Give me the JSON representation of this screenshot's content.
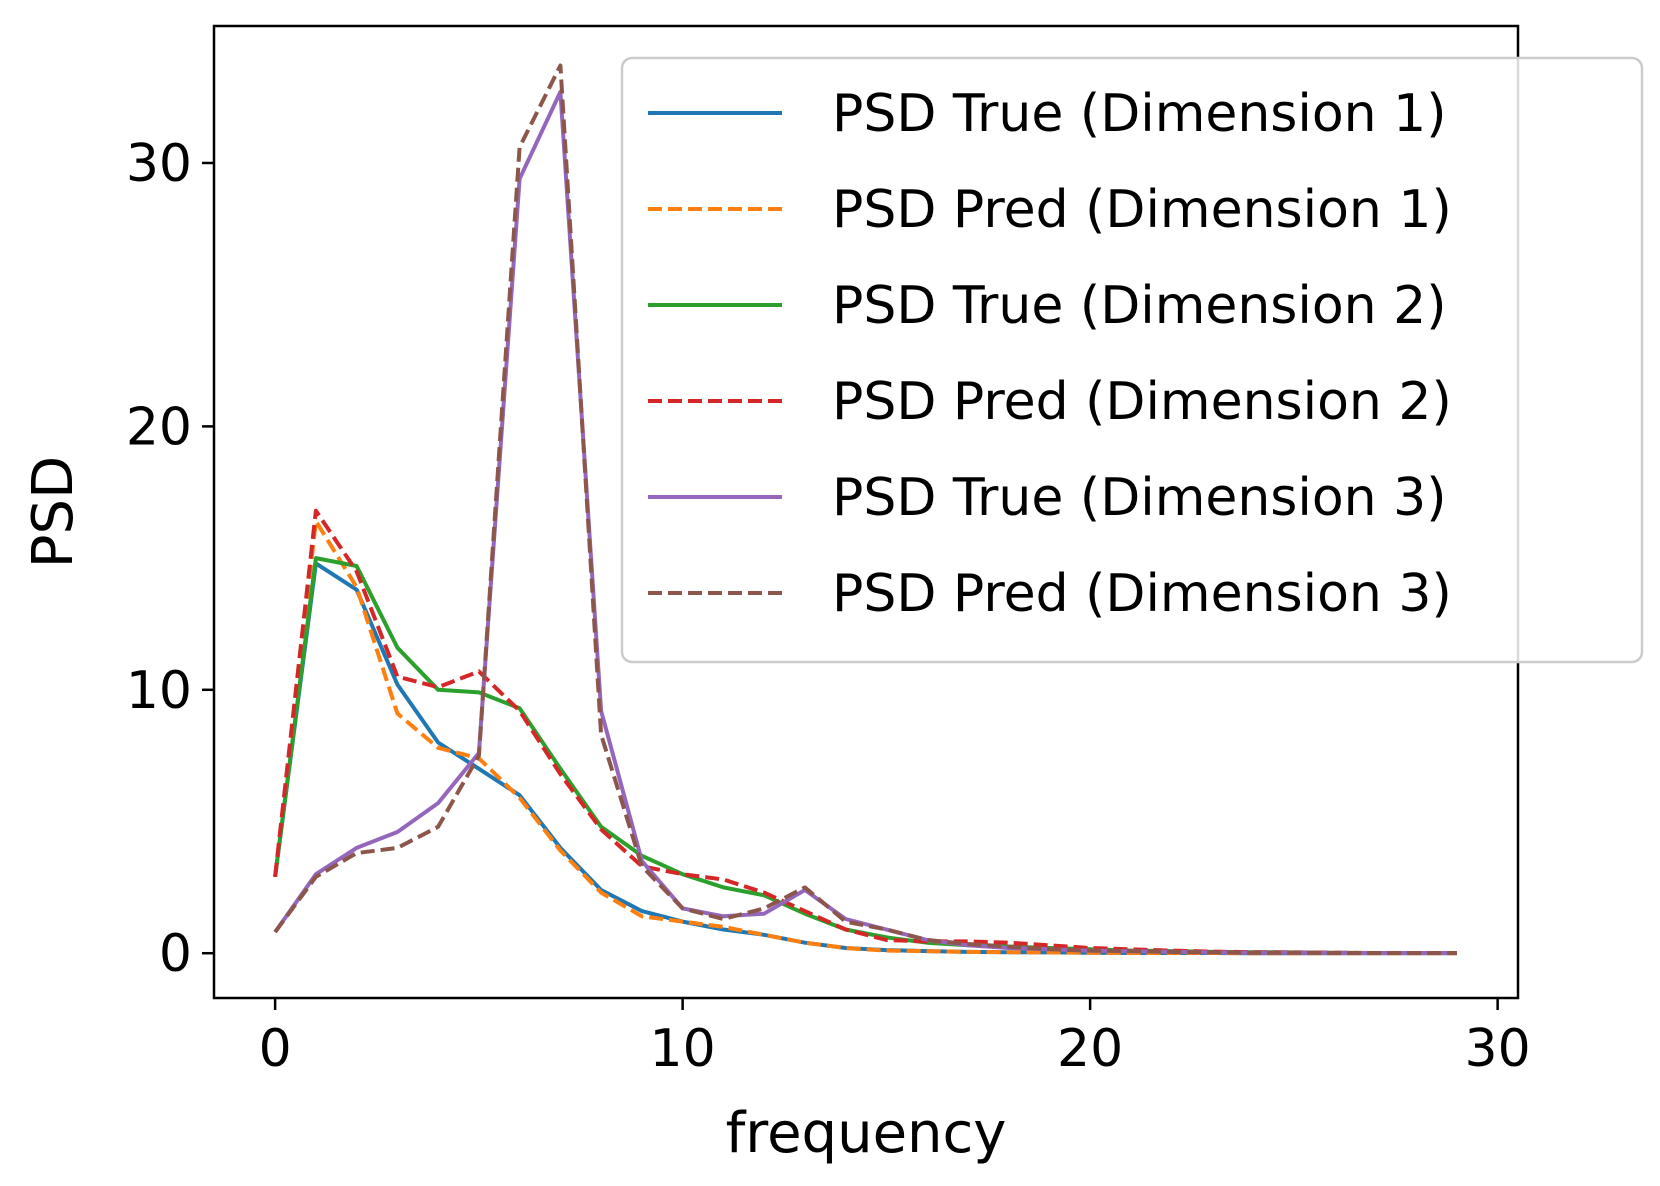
{
  "chart_data": {
    "type": "line",
    "title": "",
    "xlabel": "frequency",
    "ylabel": "PSD",
    "xlim": [
      -1.5,
      30.5
    ],
    "ylim": [
      -1.7,
      35.2
    ],
    "xticks": [
      0,
      10,
      20,
      30
    ],
    "yticks": [
      0,
      10,
      20,
      30
    ],
    "grid": false,
    "legend_position": "top-right",
    "x": [
      0,
      1,
      2,
      3,
      4,
      5,
      6,
      7,
      8,
      9,
      10,
      11,
      12,
      13,
      14,
      15,
      16,
      17,
      18,
      19,
      20,
      21,
      22,
      23,
      24,
      25,
      26,
      27,
      28,
      29
    ],
    "series": [
      {
        "name": "PSD True (Dimension 1)",
        "color": "#1f77b4",
        "dashed": false,
        "values": [
          2.9,
          14.8,
          13.8,
          10.2,
          8.0,
          7.0,
          6.0,
          4.0,
          2.4,
          1.6,
          1.2,
          0.9,
          0.7,
          0.4,
          0.2,
          0.12,
          0.08,
          0.05,
          0.04,
          0.03,
          0.02,
          0.01,
          0.01,
          0.01,
          0.0,
          0.0,
          0.0,
          0.0,
          0.0,
          0.0
        ]
      },
      {
        "name": "PSD Pred (Dimension 1)",
        "color": "#ff7f0e",
        "dashed": true,
        "values": [
          2.9,
          16.4,
          13.9,
          9.1,
          7.8,
          7.4,
          5.9,
          3.9,
          2.3,
          1.4,
          1.2,
          1.0,
          0.7,
          0.4,
          0.2,
          0.1,
          0.08,
          0.05,
          0.04,
          0.03,
          0.02,
          0.01,
          0.01,
          0.01,
          0.0,
          0.0,
          0.0,
          0.0,
          0.0,
          0.0
        ]
      },
      {
        "name": "PSD True (Dimension 2)",
        "color": "#2ca02c",
        "dashed": false,
        "values": [
          2.9,
          15.0,
          14.7,
          11.6,
          10.0,
          9.9,
          9.3,
          7.0,
          4.8,
          3.7,
          3.0,
          2.5,
          2.2,
          1.5,
          0.9,
          0.6,
          0.4,
          0.3,
          0.25,
          0.2,
          0.15,
          0.1,
          0.08,
          0.05,
          0.04,
          0.03,
          0.02,
          0.01,
          0.01,
          0.01
        ]
      },
      {
        "name": "PSD Pred (Dimension 2)",
        "color": "#d62728",
        "dashed": true,
        "values": [
          2.9,
          16.8,
          14.5,
          10.5,
          10.1,
          10.7,
          9.2,
          6.8,
          4.7,
          3.3,
          3.0,
          2.8,
          2.3,
          1.6,
          0.9,
          0.5,
          0.45,
          0.45,
          0.4,
          0.3,
          0.2,
          0.15,
          0.1,
          0.06,
          0.04,
          0.03,
          0.02,
          0.01,
          0.01,
          0.01
        ]
      },
      {
        "name": "PSD True (Dimension 3)",
        "color": "#9467bd",
        "dashed": false,
        "values": [
          0.8,
          3.0,
          4.0,
          4.6,
          5.7,
          7.6,
          29.4,
          32.7,
          9.2,
          3.5,
          1.7,
          1.4,
          1.5,
          2.4,
          1.3,
          0.9,
          0.5,
          0.3,
          0.2,
          0.15,
          0.1,
          0.08,
          0.05,
          0.03,
          0.02,
          0.02,
          0.01,
          0.01,
          0.01,
          0.01
        ]
      },
      {
        "name": "PSD Pred (Dimension 3)",
        "color": "#8c564b",
        "dashed": true,
        "values": [
          0.8,
          2.9,
          3.8,
          4.0,
          4.8,
          7.5,
          30.6,
          33.7,
          8.3,
          3.3,
          1.7,
          1.3,
          1.7,
          2.5,
          1.2,
          0.9,
          0.5,
          0.35,
          0.25,
          0.15,
          0.1,
          0.08,
          0.05,
          0.03,
          0.02,
          0.02,
          0.01,
          0.01,
          0.01,
          0.01
        ]
      }
    ]
  }
}
